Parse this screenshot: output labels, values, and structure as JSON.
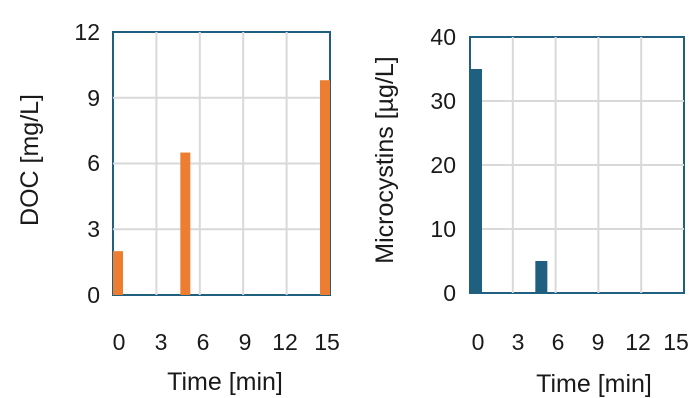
{
  "chart_data": [
    {
      "type": "bar",
      "xlabel": "Time [min]",
      "ylabel": "DOC [mg/L]",
      "xlim": [
        0,
        15
      ],
      "ylim": [
        0,
        12
      ],
      "xticks": [
        "0",
        "3",
        "6",
        "9",
        "12",
        "15"
      ],
      "yticks": [
        "0",
        "3",
        "6",
        "9",
        "12"
      ],
      "grid": true,
      "color": "#ed7d31",
      "series": [
        {
          "x": [
            0,
            5,
            15
          ],
          "values": [
            2.0,
            6.5,
            9.8
          ]
        }
      ]
    },
    {
      "type": "bar",
      "xlabel": "Time [min]",
      "ylabel": "Microcystins [µg/L]",
      "xlim": [
        0,
        15
      ],
      "ylim": [
        0,
        40
      ],
      "xticks": [
        "0",
        "3",
        "6",
        "9",
        "12",
        "15"
      ],
      "yticks": [
        "0",
        "10",
        "20",
        "30",
        "40"
      ],
      "grid": true,
      "color": "#1f5f7f",
      "series": [
        {
          "x": [
            0,
            5
          ],
          "values": [
            35,
            5
          ]
        }
      ]
    }
  ]
}
